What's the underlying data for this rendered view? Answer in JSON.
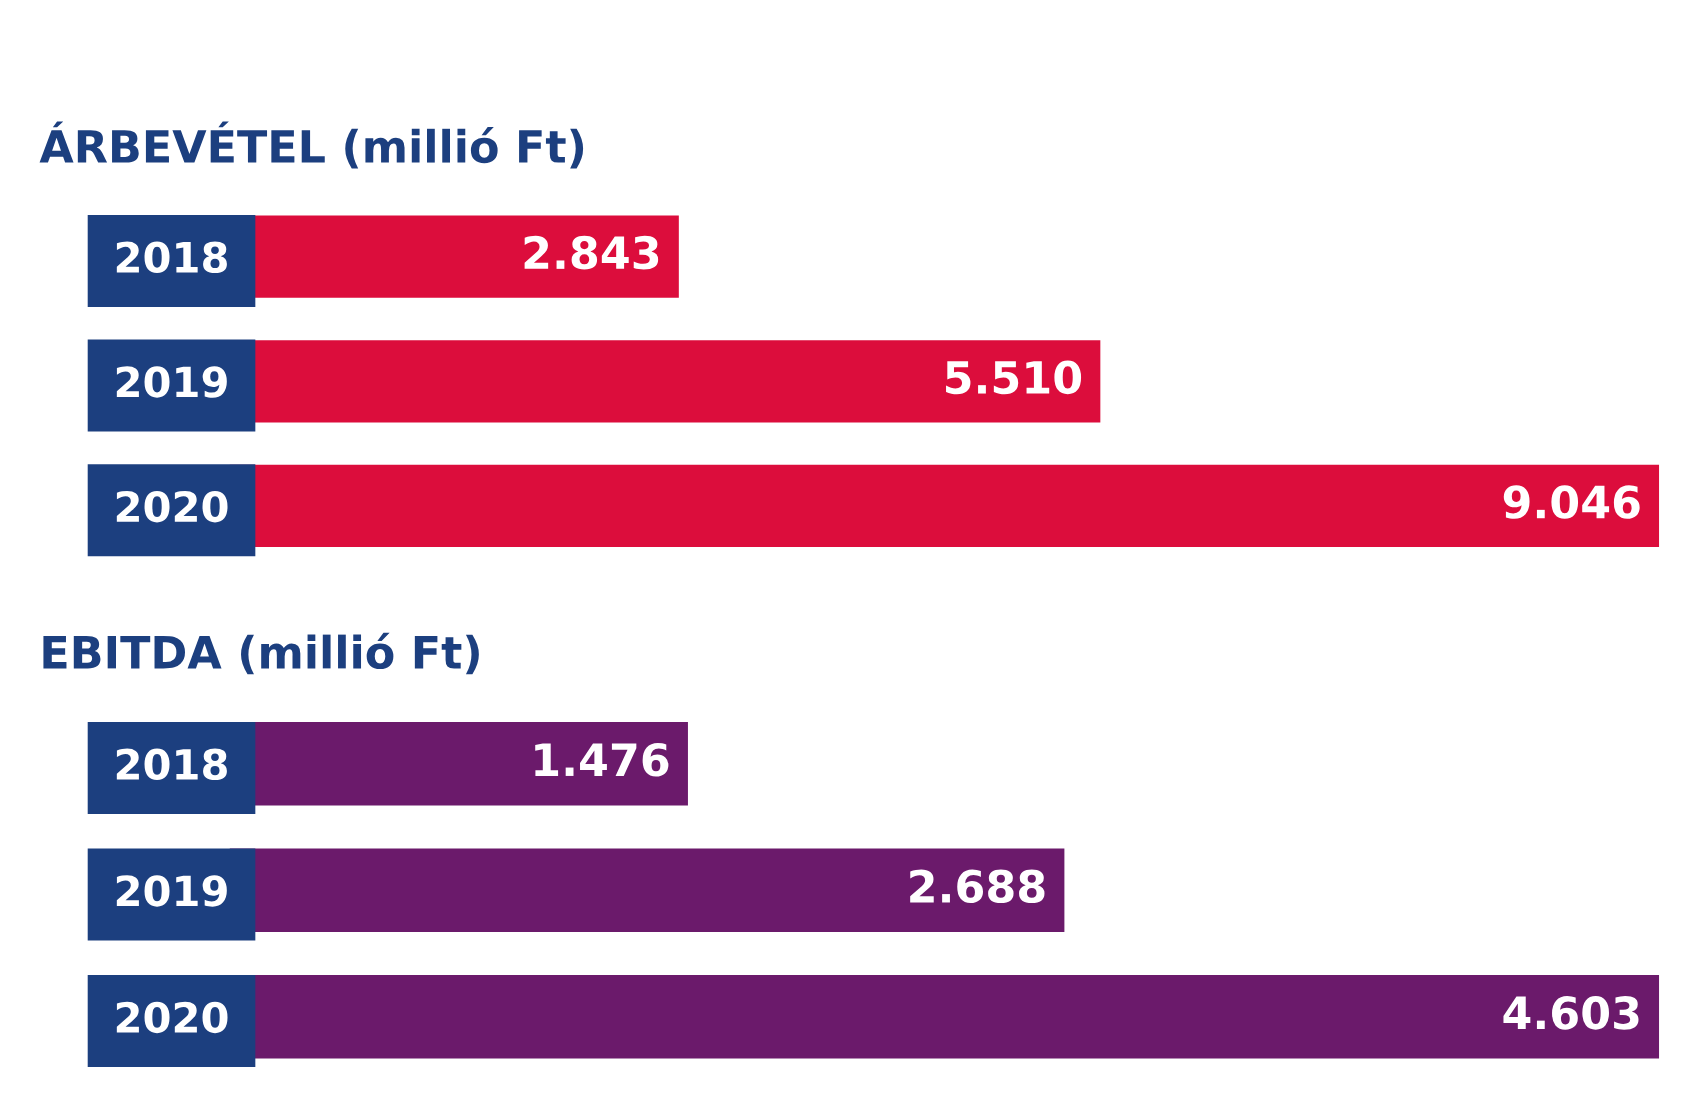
{
  "chart_data": [
    {
      "type": "bar",
      "orientation": "horizontal",
      "title": "ÁRBEVÉTEL (millió Ft)",
      "categories": [
        "2018",
        "2019",
        "2020"
      ],
      "values": [
        2843,
        5510,
        9046
      ],
      "color": "#dc0d3c",
      "value_labels": [
        "2.843",
        "5.510",
        "9.046"
      ]
    },
    {
      "type": "bar",
      "orientation": "horizontal",
      "title": "EBITDA (millió Ft)",
      "categories": [
        "2018",
        "2019",
        "2020"
      ],
      "values": [
        1476,
        2688,
        4603
      ],
      "color": "#6b1a6b",
      "value_labels": [
        "1.476",
        "2.688",
        "4.603"
      ]
    }
  ]
}
